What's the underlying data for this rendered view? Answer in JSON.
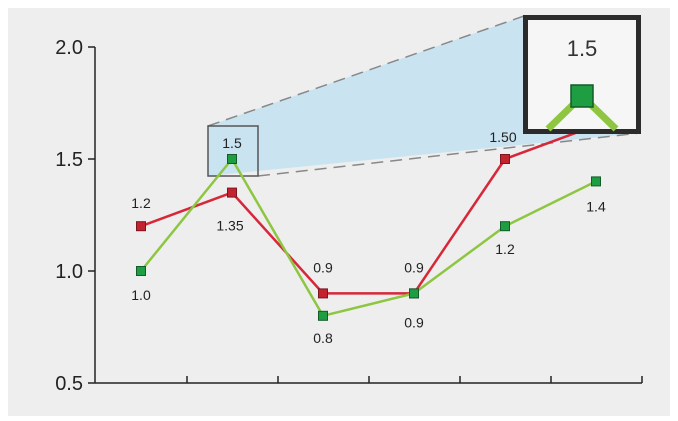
{
  "chart_data": {
    "type": "line",
    "title": "",
    "xlabel": "",
    "ylabel": "",
    "ylim": [
      0.5,
      2.0
    ],
    "yticks": [
      "0.5",
      "1.0",
      "1.5",
      "2.0"
    ],
    "x": [
      1,
      2,
      3,
      4,
      5,
      6
    ],
    "xticks_visible": false,
    "grid": false,
    "legend": "none",
    "series": [
      {
        "color": "#d62839",
        "values": [
          1.2,
          1.35,
          0.9,
          0.9,
          1.5,
          1.65
        ],
        "labels": [
          "1.2",
          "1.35",
          "0.9",
          "0.9",
          "1.50",
          ""
        ]
      },
      {
        "color": "#8ec641",
        "values": [
          1.0,
          1.5,
          0.8,
          0.9,
          1.2,
          1.4
        ],
        "labels": [
          "1.0",
          "1.5",
          "0.8",
          "0.9",
          "1.2",
          "1.4"
        ]
      }
    ],
    "annotations": {
      "highlight_point": {
        "series": 1,
        "index": 1
      },
      "zoom_label": "1.5",
      "background": "#eeeeef",
      "highlight_fill": "#c9e3f1"
    }
  }
}
